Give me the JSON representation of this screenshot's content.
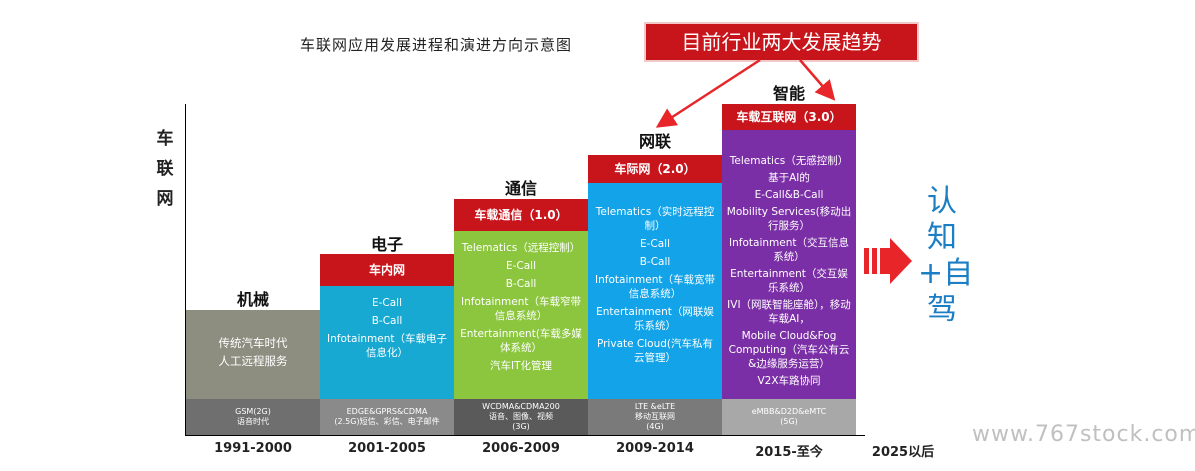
{
  "title": "车联网应用发展进程和演进方向示意图",
  "badge": "目前行业两大发展趋势",
  "y_axis_label": "车联网",
  "phases": [
    {
      "head": "机械",
      "bar": "",
      "features": [
        "传统汽车时代",
        "人工远程服务"
      ],
      "network": [
        "GSM(2G)",
        "语音时代"
      ],
      "period": "1991-2000"
    },
    {
      "head": "电子",
      "bar": "车内网",
      "features": [
        "E-Call",
        "B-Call",
        "Infotainment（车载电子信息化）"
      ],
      "network": [
        "EDGE&GPRS&CDMA",
        "(2.5G)短信、彩信、电子邮件"
      ],
      "period": "2001-2005"
    },
    {
      "head": "通信",
      "bar": "车载通信（1.0）",
      "features": [
        "Telematics（远程控制）",
        "E-Call",
        "B-Call",
        "Infotainment（车载窄带信息系统）",
        "Entertainment(车载多媒体系统）",
        "汽车IT化管理"
      ],
      "network": [
        "WCDMA&CDMA200",
        "语音、图像、视频",
        "(3G)"
      ],
      "period": "2006-2009"
    },
    {
      "head": "网联",
      "bar": "车际网（2.0）",
      "features": [
        "Telematics（实时远程控制）",
        "E-Call",
        "B-Call",
        "Infotainment（车载宽带信息系统）",
        "Entertainment（网联娱乐系统）",
        "Private Cloud(汽车私有云管理）"
      ],
      "network": [
        "LTE &eLTE",
        "移动互联网",
        "(4G)"
      ],
      "period": "2009-2014"
    },
    {
      "head": "智能",
      "bar": "车载互联网（3.0）",
      "features": [
        "Telematics（无感控制）",
        "基于AI的",
        "E-Call&B-Call",
        "Mobility Services(移动出行服务）",
        "Infotainment（交互信息系统）",
        "Entertainment（交互娱乐系统）",
        "IVI（网联智能座舱），移动车载AI，",
        "Mobile Cloud&Fog Computing（汽车公有云&边缘服务运营）",
        "V2X车路协同"
      ],
      "network": [
        "eMBB&D2D&eMTC",
        "(5G)"
      ],
      "period": "2015-至今"
    }
  ],
  "future_period": "2025以后",
  "right_text": "认知+自驾",
  "watermark": "www.767stock.com",
  "colors": {
    "red": "#c8141b",
    "gray": "#8d8d80",
    "teal": "#18a9d2",
    "green": "#8cc63f",
    "blue": "#12a3e8",
    "purple": "#7b2fa6",
    "arrow_red": "#e8262a",
    "right_text_blue": "#1c7ec3"
  }
}
